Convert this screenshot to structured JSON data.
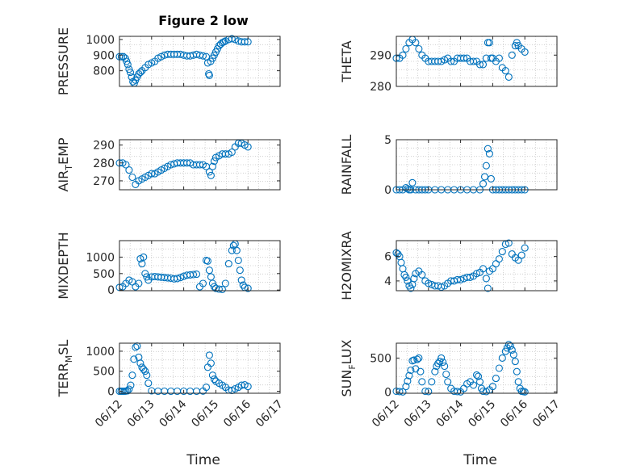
{
  "figure": {
    "title": "Figure 2 low",
    "xlabel": "Time",
    "marker_color": "#0072bd",
    "date_ticks": [
      "06/12",
      "06/13",
      "06/14",
      "06/15",
      "06/16",
      "06/17"
    ]
  },
  "chart_data": [
    {
      "type": "scatter",
      "ylabel": "PRESSURE",
      "xlim": [
        0,
        5
      ],
      "ylim": [
        700,
        1020
      ],
      "yticks": [
        800,
        900,
        1000
      ],
      "grid": true,
      "x": [
        0.0,
        0.06,
        0.12,
        0.18,
        0.22,
        0.26,
        0.3,
        0.34,
        0.38,
        0.42,
        0.46,
        0.5,
        0.55,
        0.6,
        0.65,
        0.7,
        0.8,
        0.9,
        1.0,
        1.1,
        1.2,
        1.3,
        1.4,
        1.5,
        1.6,
        1.7,
        1.8,
        1.9,
        2.0,
        2.1,
        2.2,
        2.3,
        2.4,
        2.5,
        2.6,
        2.7,
        2.75,
        2.78,
        2.8,
        2.84,
        2.9,
        2.95,
        3.0,
        3.05,
        3.1,
        3.15,
        3.2,
        3.25,
        3.3,
        3.4,
        3.5,
        3.6,
        3.7,
        3.8,
        3.9,
        4.0
      ],
      "y": [
        890,
        890,
        890,
        880,
        860,
        840,
        810,
        790,
        760,
        730,
        720,
        740,
        760,
        780,
        790,
        800,
        820,
        840,
        850,
        860,
        880,
        890,
        900,
        905,
        905,
        905,
        905,
        905,
        900,
        895,
        895,
        900,
        905,
        900,
        895,
        890,
        850,
        780,
        770,
        860,
        880,
        900,
        920,
        940,
        960,
        970,
        980,
        985,
        990,
        1000,
        1005,
        1000,
        990,
        985,
        985,
        985
      ],
      "y_tick_labels": [
        "800",
        "900",
        "1000"
      ]
    },
    {
      "type": "scatter",
      "ylabel": "THETA",
      "xlim": [
        0,
        5
      ],
      "ylim": [
        280,
        296
      ],
      "yticks": [
        280,
        290
      ],
      "grid": true,
      "x": [
        0.0,
        0.1,
        0.2,
        0.3,
        0.4,
        0.5,
        0.6,
        0.7,
        0.8,
        0.9,
        1.0,
        1.1,
        1.2,
        1.3,
        1.4,
        1.5,
        1.6,
        1.7,
        1.8,
        1.9,
        2.0,
        2.1,
        2.2,
        2.3,
        2.4,
        2.5,
        2.6,
        2.7,
        2.8,
        2.85,
        2.9,
        2.95,
        3.0,
        3.1,
        3.2,
        3.3,
        3.4,
        3.5,
        3.6,
        3.7,
        3.75,
        3.8,
        3.9,
        4.0
      ],
      "y": [
        289,
        289,
        290,
        292,
        294,
        295,
        294,
        292,
        290,
        289,
        288,
        288,
        288,
        288,
        288,
        288.5,
        289,
        288,
        288,
        289,
        289,
        289,
        289,
        288,
        288,
        288,
        287,
        287,
        289,
        294,
        294,
        289,
        289,
        288,
        289,
        286,
        285,
        283,
        290,
        293,
        294,
        293,
        292,
        291
      ],
      "y_tick_labels": [
        "280",
        "290"
      ]
    },
    {
      "type": "scatter",
      "ylabel": "AIR_TEMP",
      "xlim": [
        0,
        5
      ],
      "ylim": [
        265,
        293
      ],
      "yticks": [
        270,
        280,
        290
      ],
      "grid": true,
      "x": [
        0.0,
        0.1,
        0.2,
        0.3,
        0.4,
        0.5,
        0.6,
        0.7,
        0.8,
        0.9,
        1.0,
        1.1,
        1.2,
        1.3,
        1.4,
        1.5,
        1.6,
        1.7,
        1.8,
        1.9,
        2.0,
        2.1,
        2.2,
        2.3,
        2.4,
        2.5,
        2.6,
        2.7,
        2.8,
        2.85,
        2.9,
        2.95,
        3.0,
        3.1,
        3.2,
        3.3,
        3.4,
        3.5,
        3.6,
        3.7,
        3.8,
        3.9,
        4.0
      ],
      "y": [
        280,
        280,
        279,
        276,
        272,
        268,
        270,
        271,
        272,
        273,
        274,
        274,
        275,
        276,
        277,
        278,
        279,
        279.5,
        280,
        280,
        280,
        280,
        280,
        279,
        279,
        279,
        279,
        278,
        275,
        273,
        278,
        281,
        283,
        284,
        285,
        285,
        285,
        286,
        289,
        291,
        291,
        290,
        289
      ],
      "y_tick_labels": [
        "270",
        "280",
        "290"
      ]
    },
    {
      "type": "scatter",
      "ylabel": "RAINFALL",
      "xlim": [
        0,
        5
      ],
      "ylim": [
        0,
        5
      ],
      "yticks": [
        0,
        5
      ],
      "grid": true,
      "x": [
        0.0,
        0.1,
        0.2,
        0.3,
        0.35,
        0.4,
        0.45,
        0.5,
        0.6,
        0.7,
        0.8,
        0.9,
        1.0,
        1.2,
        1.4,
        1.6,
        1.8,
        2.0,
        2.2,
        2.4,
        2.6,
        2.7,
        2.75,
        2.8,
        2.85,
        2.9,
        2.95,
        3.0,
        3.1,
        3.2,
        3.3,
        3.4,
        3.5,
        3.6,
        3.7,
        3.8,
        3.9,
        4.0
      ],
      "y": [
        0,
        0,
        0,
        0.2,
        0.1,
        0,
        0,
        0.7,
        0,
        0,
        0,
        0,
        0,
        0,
        0,
        0,
        0,
        0,
        0,
        0,
        0,
        0.6,
        1.3,
        2.4,
        4.1,
        3.6,
        1.1,
        0,
        0,
        0,
        0,
        0,
        0,
        0,
        0,
        0,
        0,
        0
      ],
      "y_tick_labels": [
        "0",
        "5"
      ]
    },
    {
      "type": "scatter",
      "ylabel": "MIXDEPTH",
      "xlim": [
        0,
        5
      ],
      "ylim": [
        -20,
        1500
      ],
      "yticks": [
        0,
        500,
        1000
      ],
      "grid": true,
      "x": [
        0.0,
        0.1,
        0.2,
        0.3,
        0.4,
        0.5,
        0.6,
        0.65,
        0.7,
        0.75,
        0.8,
        0.85,
        0.9,
        1.0,
        1.1,
        1.2,
        1.3,
        1.4,
        1.5,
        1.6,
        1.7,
        1.8,
        1.9,
        2.0,
        2.1,
        2.2,
        2.3,
        2.4,
        2.5,
        2.6,
        2.7,
        2.75,
        2.8,
        2.85,
        2.9,
        2.95,
        3.0,
        3.1,
        3.2,
        3.3,
        3.4,
        3.5,
        3.55,
        3.6,
        3.65,
        3.7,
        3.75,
        3.8,
        3.85,
        3.9,
        4.0
      ],
      "y": [
        80,
        100,
        200,
        300,
        250,
        100,
        200,
        950,
        800,
        1000,
        500,
        400,
        300,
        400,
        410,
        400,
        390,
        380,
        370,
        360,
        340,
        350,
        380,
        420,
        450,
        460,
        470,
        480,
        100,
        200,
        900,
        880,
        600,
        400,
        200,
        100,
        50,
        30,
        20,
        200,
        800,
        1200,
        1350,
        1400,
        1200,
        900,
        600,
        300,
        150,
        80,
        50
      ],
      "y_tick_labels": [
        "0",
        "500",
        "1000"
      ]
    },
    {
      "type": "scatter",
      "ylabel": "H2OMIXRA",
      "xlim": [
        0,
        5
      ],
      "ylim": [
        3.2,
        7.3
      ],
      "yticks": [
        4,
        6
      ],
      "grid": true,
      "x": [
        0.0,
        0.05,
        0.1,
        0.15,
        0.2,
        0.25,
        0.3,
        0.35,
        0.4,
        0.45,
        0.5,
        0.55,
        0.6,
        0.7,
        0.8,
        0.9,
        1.0,
        1.1,
        1.2,
        1.3,
        1.4,
        1.5,
        1.6,
        1.7,
        1.8,
        1.9,
        2.0,
        2.1,
        2.2,
        2.3,
        2.4,
        2.5,
        2.6,
        2.7,
        2.8,
        2.85,
        2.9,
        3.0,
        3.1,
        3.2,
        3.3,
        3.4,
        3.5,
        3.6,
        3.7,
        3.8,
        3.9,
        4.0
      ],
      "y": [
        6.3,
        6.2,
        6.0,
        5.5,
        5.0,
        4.5,
        4.3,
        4.0,
        3.6,
        3.4,
        3.7,
        4.2,
        4.6,
        4.8,
        4.5,
        4.0,
        3.8,
        3.7,
        3.6,
        3.6,
        3.5,
        3.6,
        3.8,
        4.0,
        4.0,
        4.1,
        4.1,
        4.2,
        4.3,
        4.3,
        4.4,
        4.6,
        4.7,
        5.0,
        4.2,
        3.4,
        4.8,
        5.0,
        5.4,
        5.8,
        6.4,
        7.0,
        7.1,
        6.2,
        5.9,
        5.7,
        6.1,
        6.7
      ],
      "y_tick_labels": [
        "4",
        "6"
      ]
    },
    {
      "type": "scatter",
      "ylabel": "TERR_MSL",
      "xlim": [
        0,
        5
      ],
      "ylim": [
        -50,
        1200
      ],
      "yticks": [
        0,
        500,
        1000
      ],
      "grid": true,
      "x": [
        0.0,
        0.05,
        0.1,
        0.15,
        0.2,
        0.25,
        0.3,
        0.35,
        0.4,
        0.45,
        0.5,
        0.55,
        0.6,
        0.65,
        0.7,
        0.75,
        0.8,
        0.85,
        0.9,
        1.0,
        1.2,
        1.4,
        1.6,
        1.8,
        2.0,
        2.2,
        2.4,
        2.6,
        2.7,
        2.75,
        2.8,
        2.85,
        2.9,
        2.95,
        3.0,
        3.1,
        3.2,
        3.3,
        3.4,
        3.5,
        3.6,
        3.7,
        3.8,
        3.9,
        4.0
      ],
      "y": [
        0,
        0,
        0,
        0,
        5,
        10,
        50,
        150,
        400,
        800,
        1100,
        1130,
        850,
        700,
        600,
        550,
        500,
        400,
        200,
        10,
        0,
        0,
        0,
        0,
        0,
        0,
        0,
        5,
        100,
        600,
        900,
        700,
        400,
        300,
        250,
        200,
        150,
        100,
        30,
        20,
        60,
        100,
        150,
        160,
        120
      ],
      "y_tick_labels": [
        "0",
        "500",
        "1000"
      ]
    },
    {
      "type": "scatter",
      "ylabel": "SUN_FLUX",
      "xlim": [
        0,
        5
      ],
      "ylim": [
        -20,
        720
      ],
      "yticks": [
        0,
        500
      ],
      "grid": true,
      "x": [
        0.0,
        0.1,
        0.2,
        0.3,
        0.35,
        0.4,
        0.45,
        0.5,
        0.55,
        0.6,
        0.65,
        0.7,
        0.75,
        0.8,
        0.9,
        1.0,
        1.1,
        1.2,
        1.25,
        1.3,
        1.35,
        1.4,
        1.45,
        1.5,
        1.55,
        1.6,
        1.7,
        1.8,
        1.9,
        2.0,
        2.1,
        2.2,
        2.3,
        2.4,
        2.5,
        2.55,
        2.6,
        2.65,
        2.7,
        2.8,
        2.9,
        3.0,
        3.1,
        3.2,
        3.3,
        3.4,
        3.45,
        3.5,
        3.55,
        3.6,
        3.65,
        3.7,
        3.75,
        3.8,
        3.85,
        3.9,
        3.95,
        4.0
      ],
      "y": [
        10,
        5,
        0,
        80,
        160,
        240,
        320,
        460,
        470,
        340,
        480,
        500,
        300,
        150,
        10,
        5,
        150,
        300,
        380,
        420,
        450,
        500,
        440,
        380,
        260,
        150,
        50,
        10,
        5,
        0,
        50,
        120,
        150,
        100,
        250,
        230,
        150,
        50,
        10,
        5,
        30,
        80,
        200,
        350,
        500,
        600,
        650,
        700,
        680,
        620,
        550,
        450,
        300,
        150,
        50,
        10,
        5,
        0
      ],
      "y_tick_labels": [
        "0",
        "500"
      ]
    }
  ],
  "panel_labels": [
    {
      "main": "PRESSURE",
      "sub": ""
    },
    {
      "main": "THETA",
      "sub": ""
    },
    {
      "main": "AIR",
      "sub": "T",
      "rest": "EMP"
    },
    {
      "main": "RAINFALL",
      "sub": ""
    },
    {
      "main": "MIXDEPTH",
      "sub": ""
    },
    {
      "main": "H2OMIXRA",
      "sub": ""
    },
    {
      "main": "TERR",
      "sub": "M",
      "rest": "SL"
    },
    {
      "main": "SUN",
      "sub": "F",
      "rest": "LUX"
    }
  ]
}
